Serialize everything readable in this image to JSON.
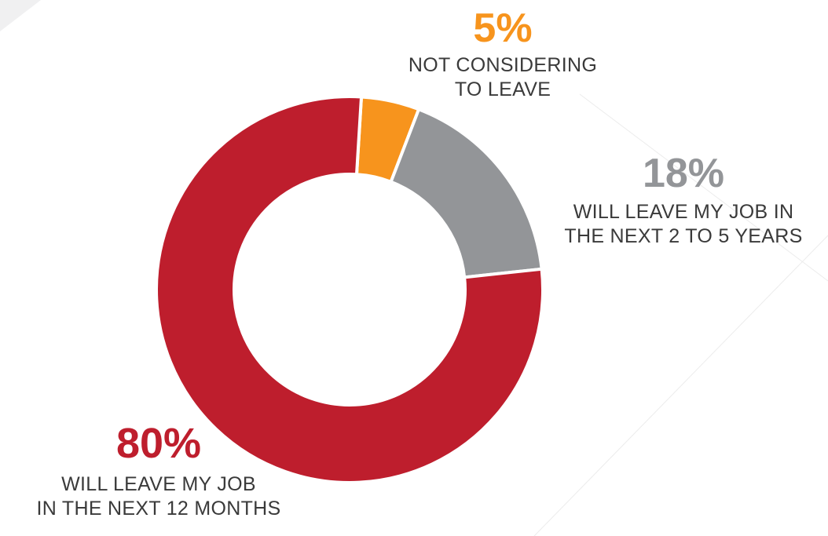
{
  "chart_data": {
    "type": "pie",
    "donut": true,
    "slices": [
      {
        "value": 80,
        "label": "80%",
        "description_lines": [
          "WILL LEAVE MY JOB",
          "IN THE NEXT 12 MONTHS"
        ],
        "color": "#be1e2d"
      },
      {
        "value": 5,
        "label": "5%",
        "description_lines": [
          "NOT CONSIDERING",
          "TO LEAVE"
        ],
        "color": "#f7941d"
      },
      {
        "value": 18,
        "label": "18%",
        "description_lines": [
          "WILL LEAVE MY JOB IN",
          "THE NEXT 2 TO 5 YEARS"
        ],
        "color": "#939598"
      }
    ],
    "start_slice": "5%",
    "direction": "clockwise",
    "legend": "none"
  }
}
